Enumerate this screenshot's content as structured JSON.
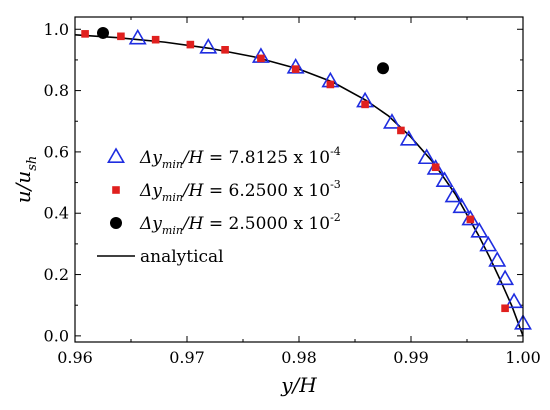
{
  "chart_data": {
    "type": "scatter",
    "xlabel": {
      "main": "y/H"
    },
    "ylabel": {
      "main": "u/u",
      "sub": "sh"
    },
    "xlim": [
      0.96,
      1.0
    ],
    "ylim": [
      -0.02,
      1.04
    ],
    "xticks": [
      "0.96",
      "0.97",
      "0.98",
      "0.99",
      "1.00"
    ],
    "yticks": [
      "0.0",
      "0.2",
      "0.4",
      "0.6",
      "0.8",
      "1.0"
    ],
    "grid": false,
    "legend_position": "center-left",
    "series": [
      {
        "name": "Δy_min/H = 7.8125 x 10^-4",
        "legend": {
          "delta": "Δy",
          "sub": "min",
          "mid": "/H = 7.8125 x 10",
          "sup": "-4"
        },
        "marker": "triangle-open",
        "color": "#1f2de0",
        "x": [
          0.9656,
          0.9719,
          0.9766,
          0.9797,
          0.9828,
          0.9859,
          0.9883,
          0.9898,
          0.9914,
          0.9922,
          0.993,
          0.9938,
          0.9945,
          0.9953,
          0.9961,
          0.9969,
          0.9977,
          0.9984,
          0.9992,
          1.0
        ],
        "values": [
          0.97,
          0.94,
          0.91,
          0.875,
          0.83,
          0.765,
          0.695,
          0.64,
          0.58,
          0.545,
          0.505,
          0.455,
          0.42,
          0.38,
          0.34,
          0.295,
          0.245,
          0.185,
          0.11,
          0.04
        ]
      },
      {
        "name": "Δy_min/H = 6.2500 x 10^-3",
        "legend": {
          "delta": "Δy",
          "sub": "min",
          "mid": "/H = 6.2500 x 10",
          "sup": "-3"
        },
        "marker": "square",
        "color": "#e0201e",
        "x": [
          0.9609,
          0.9641,
          0.9672,
          0.9703,
          0.9734,
          0.9766,
          0.9797,
          0.9828,
          0.9859,
          0.9891,
          0.9922,
          0.9953,
          0.9984
        ],
        "values": [
          0.985,
          0.977,
          0.966,
          0.95,
          0.933,
          0.905,
          0.87,
          0.82,
          0.755,
          0.67,
          0.55,
          0.38,
          0.09
        ]
      },
      {
        "name": "Δy_min/H = 2.5000 x 10^-2",
        "legend": {
          "delta": "Δy",
          "sub": "min",
          "mid": "/H = 2.5000 x 10",
          "sup": "-2"
        },
        "marker": "circle",
        "color": "#000000",
        "x": [
          0.9625,
          0.9875
        ],
        "values": [
          0.988,
          0.873
        ]
      },
      {
        "name": "analytical",
        "legend": {
          "text": "analytical"
        },
        "marker": "line",
        "color": "#000000",
        "x": [
          0.96,
          0.964,
          0.968,
          0.972,
          0.976,
          0.98,
          0.983,
          0.986,
          0.988,
          0.99,
          0.992,
          0.994,
          0.996,
          0.997,
          0.998,
          0.999,
          1.0
        ],
        "values": [
          0.982,
          0.972,
          0.958,
          0.938,
          0.91,
          0.87,
          0.828,
          0.768,
          0.717,
          0.648,
          0.565,
          0.46,
          0.33,
          0.258,
          0.18,
          0.098,
          0.0
        ]
      }
    ]
  }
}
